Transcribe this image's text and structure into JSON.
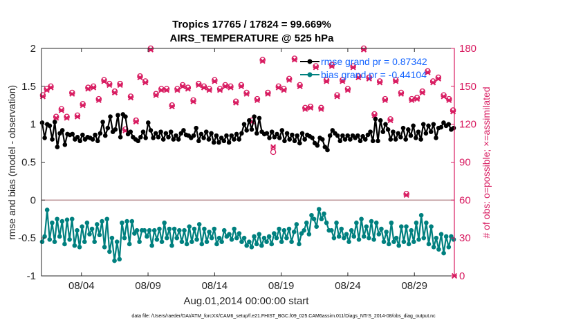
{
  "chart_data": {
    "type": "line",
    "title": "Tropics 17765 / 17824 = 99.669%",
    "subtitle": "AIRS_TEMPERATURE @ 525 hPa",
    "xlabel": "Aug.01,2014 00:00:00 start",
    "ylabel": "rmse and bias (model - observation)",
    "y2label": "# of obs: o=possible; ×=assimilated",
    "footer": "data file: /Users/raeder/DAI/ATM_forcXX/CAM6_setup/f.e21.FHIST_BGC.f09_025.CAM6assim.011/Diags_NTrS_2014-08/obs_diag_output.nc",
    "xlim": [
      0.5,
      31.5
    ],
    "ylim": [
      -1,
      2
    ],
    "y2lim": [
      0,
      180
    ],
    "x_ticks": [
      3.5,
      8.5,
      13.5,
      18.5,
      23.5,
      28.5
    ],
    "x_ticklabels": [
      "08/04",
      "08/09",
      "08/14",
      "08/19",
      "08/24",
      "08/29"
    ],
    "y_ticks": [
      -1,
      -0.5,
      0,
      0.5,
      1,
      1.5,
      2
    ],
    "y_ticklabels": [
      "-1",
      "-0.5",
      "0",
      "0.5",
      "1",
      "1.5",
      "2"
    ],
    "y2_ticks": [
      0,
      30,
      60,
      90,
      120,
      150,
      180
    ],
    "y2_ticklabels": [
      "0",
      "30",
      "60",
      "90",
      "120",
      "150",
      "180"
    ],
    "zero_line": 0,
    "legend": {
      "location": "top-right"
    },
    "series": [
      {
        "name": "rmse grand pr = 0.87342",
        "color": "#000000",
        "values": [
          1.02,
          0.82,
          1.0,
          0.98,
          0.8,
          1.03,
          0.7,
          0.88,
          0.92,
          0.73,
          0.87,
          0.86,
          0.87,
          0.8,
          0.83,
          0.78,
          0.86,
          0.8,
          0.83,
          0.82,
          0.8,
          0.86,
          0.78,
          0.88,
          1.03,
          0.85,
          0.95,
          1.1,
          0.9,
          0.93,
          1.12,
          0.83,
          1.13,
          1.1,
          0.87,
          0.9,
          0.83,
          0.8,
          0.78,
          0.83,
          0.9,
          0.82,
          1.02,
          0.92,
          0.82,
          0.88,
          0.83,
          0.9,
          0.8,
          0.88,
          0.83,
          0.9,
          0.8,
          0.85,
          0.8,
          0.88,
          0.92,
          0.86,
          0.85,
          0.82,
          0.85,
          0.95,
          0.78,
          0.87,
          0.82,
          0.9,
          0.8,
          0.88,
          0.76,
          0.85,
          0.76,
          0.82,
          0.78,
          0.85,
          0.76,
          0.85,
          0.8,
          0.87,
          0.8,
          0.88,
          1.0,
          0.92,
          1.05,
          0.93,
          1.1,
          0.88,
          1.08,
          0.9,
          0.87,
          0.88,
          0.82,
          0.9,
          0.83,
          0.87,
          0.82,
          0.92,
          0.78,
          0.88,
          0.8,
          0.86,
          0.78,
          0.85,
          0.75,
          0.88,
          0.8,
          0.86,
          0.84,
          0.82,
          0.75,
          0.72,
          0.82,
          0.8,
          0.7,
          0.66,
          0.85,
          0.92,
          0.88,
          0.85,
          0.78,
          0.85,
          0.8,
          0.85,
          0.8,
          0.85,
          0.82,
          0.85,
          0.78,
          0.84,
          0.8,
          0.86,
          0.9,
          0.78,
          1.07,
          0.78,
          1.05,
          0.9,
          1.0,
          0.93,
          0.8,
          0.9,
          0.8,
          0.88,
          0.83,
          0.95,
          0.8,
          0.93,
          0.85,
          0.98,
          0.82,
          0.9,
          0.8,
          1.0,
          0.88,
          0.98,
          0.9,
          1.0,
          0.82,
          0.95,
          0.96,
          1.02,
          0.98,
          1.0,
          0.93,
          0.95
        ]
      },
      {
        "name": "bias grand pr = -0.44104",
        "color": "#00807f",
        "values": [
          -0.55,
          -0.48,
          -0.13,
          -0.52,
          -0.3,
          -0.55,
          -0.25,
          -0.48,
          -0.28,
          -0.58,
          -0.26,
          -0.52,
          -0.25,
          -0.6,
          -0.4,
          -0.62,
          -0.35,
          -0.55,
          -0.3,
          -0.45,
          -0.38,
          -0.55,
          -0.32,
          -0.46,
          -0.28,
          -0.62,
          -0.25,
          -0.68,
          -0.5,
          -0.8,
          -0.55,
          -0.78,
          -0.3,
          -0.5,
          -0.28,
          -0.58,
          -0.28,
          -0.44,
          -0.4,
          -0.55,
          -0.4,
          -0.4,
          -0.48,
          -0.4,
          -0.6,
          -0.4,
          -0.52,
          -0.38,
          -0.55,
          -0.3,
          -0.5,
          -0.38,
          -0.6,
          -0.38,
          -0.5,
          -0.4,
          -0.55,
          -0.4,
          -0.58,
          -0.35,
          -0.55,
          -0.38,
          -0.52,
          -0.32,
          -0.58,
          -0.38,
          -0.55,
          -0.42,
          -0.5,
          -0.38,
          -0.58,
          -0.5,
          -0.55,
          -0.4,
          -0.48,
          -0.45,
          -0.52,
          -0.38,
          -0.5,
          -0.44,
          -0.55,
          -0.5,
          -0.6,
          -0.55,
          -0.62,
          -0.48,
          -0.58,
          -0.45,
          -0.6,
          -0.5,
          -0.55,
          -0.48,
          -0.58,
          -0.44,
          -0.5,
          -0.38,
          -0.55,
          -0.4,
          -0.5,
          -0.38,
          -0.55,
          -0.42,
          -0.32,
          -0.58,
          -0.44,
          -0.4,
          -0.3,
          -0.45,
          -0.2,
          -0.25,
          -0.35,
          -0.12,
          -0.25,
          -0.18,
          -0.3,
          -0.4,
          -0.4,
          -0.5,
          -0.3,
          -0.48,
          -0.38,
          -0.5,
          -0.45,
          -0.55,
          -0.4,
          -0.48,
          -0.3,
          -0.52,
          -0.25,
          -0.48,
          -0.35,
          -0.5,
          -0.28,
          -0.52,
          -0.3,
          -0.45,
          -0.38,
          -0.55,
          -0.42,
          -0.58,
          -0.3,
          -0.55,
          -0.5,
          -0.6,
          -0.35,
          -0.55,
          -0.35,
          -0.58,
          -0.4,
          -0.55,
          -0.3,
          -0.52,
          -0.2,
          -0.5,
          -0.3,
          -0.58,
          -0.35,
          -0.62,
          -0.5,
          -0.65,
          -0.45,
          -0.7,
          -0.48,
          -0.62,
          -0.48,
          -0.52
        ]
      }
    ],
    "obs_possible": [
      [
        0.6,
        143
      ],
      [
        0.9,
        148
      ],
      [
        1.2,
        150
      ],
      [
        1.6,
        126
      ],
      [
        2.0,
        132
      ],
      [
        2.4,
        126
      ],
      [
        2.8,
        145
      ],
      [
        3.2,
        127
      ],
      [
        3.6,
        136
      ],
      [
        4.0,
        149
      ],
      [
        4.4,
        150
      ],
      [
        4.8,
        140
      ],
      [
        5.2,
        155
      ],
      [
        5.6,
        152
      ],
      [
        6.0,
        146
      ],
      [
        6.4,
        152
      ],
      [
        6.8,
        116
      ],
      [
        7.2,
        142
      ],
      [
        7.6,
        123
      ],
      [
        7.9,
        158
      ],
      [
        8.3,
        154
      ],
      [
        8.7,
        180
      ],
      [
        9.1,
        144
      ],
      [
        9.5,
        148
      ],
      [
        9.9,
        148
      ],
      [
        10.3,
        135
      ],
      [
        10.7,
        148
      ],
      [
        11.1,
        151
      ],
      [
        11.5,
        149
      ],
      [
        11.9,
        139
      ],
      [
        12.3,
        152
      ],
      [
        12.7,
        150
      ],
      [
        13.1,
        148
      ],
      [
        13.5,
        155
      ],
      [
        13.9,
        148
      ],
      [
        14.3,
        151
      ],
      [
        14.7,
        150
      ],
      [
        15.1,
        138
      ],
      [
        15.5,
        151
      ],
      [
        15.9,
        145
      ],
      [
        16.3,
        123
      ],
      [
        16.7,
        140
      ],
      [
        17.1,
        171
      ],
      [
        17.5,
        145
      ],
      [
        17.9,
        98
      ],
      [
        18.3,
        150
      ],
      [
        18.7,
        148
      ],
      [
        19.1,
        156
      ],
      [
        19.5,
        172
      ],
      [
        19.9,
        151
      ],
      [
        20.3,
        133
      ],
      [
        20.7,
        134
      ],
      [
        21.1,
        166
      ],
      [
        21.5,
        133
      ],
      [
        21.9,
        155
      ],
      [
        22.3,
        167
      ],
      [
        22.7,
        143
      ],
      [
        23.1,
        155
      ],
      [
        23.5,
        148
      ],
      [
        23.9,
        166
      ],
      [
        24.3,
        158
      ],
      [
        24.7,
        180
      ],
      [
        25.1,
        157
      ],
      [
        25.5,
        128
      ],
      [
        25.9,
        154
      ],
      [
        26.3,
        140
      ],
      [
        26.7,
        124
      ],
      [
        27.1,
        155
      ],
      [
        27.5,
        145
      ],
      [
        27.9,
        65
      ],
      [
        28.3,
        140
      ],
      [
        28.7,
        141
      ],
      [
        29.1,
        146
      ],
      [
        29.5,
        162
      ],
      [
        29.9,
        154
      ],
      [
        30.3,
        157
      ],
      [
        30.7,
        143
      ],
      [
        31.1,
        140
      ],
      [
        31.4,
        131
      ]
    ],
    "obs_assimilated": [
      [
        0.6,
        142
      ],
      [
        0.9,
        147
      ],
      [
        1.2,
        149
      ],
      [
        1.6,
        125
      ],
      [
        2.0,
        131
      ],
      [
        2.4,
        125
      ],
      [
        2.8,
        144
      ],
      [
        3.2,
        126
      ],
      [
        3.6,
        135
      ],
      [
        4.0,
        148
      ],
      [
        4.4,
        149
      ],
      [
        4.8,
        139
      ],
      [
        5.2,
        154
      ],
      [
        5.6,
        151
      ],
      [
        6.0,
        145
      ],
      [
        6.4,
        151
      ],
      [
        6.8,
        115
      ],
      [
        7.2,
        141
      ],
      [
        7.6,
        122
      ],
      [
        7.9,
        157
      ],
      [
        8.3,
        153
      ],
      [
        8.7,
        179
      ],
      [
        9.1,
        143
      ],
      [
        9.5,
        147
      ],
      [
        9.9,
        147
      ],
      [
        10.3,
        134
      ],
      [
        10.7,
        147
      ],
      [
        11.1,
        150
      ],
      [
        11.5,
        148
      ],
      [
        11.9,
        138
      ],
      [
        12.3,
        151
      ],
      [
        12.7,
        149
      ],
      [
        13.1,
        147
      ],
      [
        13.5,
        154
      ],
      [
        13.9,
        147
      ],
      [
        14.3,
        150
      ],
      [
        14.7,
        149
      ],
      [
        15.1,
        137
      ],
      [
        15.5,
        150
      ],
      [
        15.9,
        144
      ],
      [
        16.3,
        122
      ],
      [
        16.7,
        139
      ],
      [
        17.1,
        170
      ],
      [
        17.5,
        144
      ],
      [
        17.9,
        102
      ],
      [
        18.3,
        149
      ],
      [
        18.7,
        147
      ],
      [
        19.1,
        155
      ],
      [
        19.5,
        171
      ],
      [
        19.9,
        150
      ],
      [
        20.3,
        132
      ],
      [
        20.7,
        133
      ],
      [
        21.1,
        165
      ],
      [
        21.5,
        132
      ],
      [
        21.9,
        154
      ],
      [
        22.3,
        166
      ],
      [
        22.7,
        142
      ],
      [
        23.1,
        154
      ],
      [
        23.5,
        147
      ],
      [
        23.9,
        165
      ],
      [
        24.3,
        157
      ],
      [
        24.7,
        179
      ],
      [
        25.1,
        156
      ],
      [
        25.5,
        127
      ],
      [
        25.9,
        153
      ],
      [
        26.3,
        139
      ],
      [
        26.7,
        123
      ],
      [
        27.1,
        154
      ],
      [
        27.5,
        144
      ],
      [
        27.9,
        64
      ],
      [
        28.3,
        139
      ],
      [
        28.7,
        140
      ],
      [
        29.1,
        145
      ],
      [
        29.5,
        161
      ],
      [
        29.9,
        153
      ],
      [
        30.3,
        156
      ],
      [
        30.7,
        142
      ],
      [
        31.1,
        139
      ],
      [
        31.4,
        130
      ],
      [
        31.5,
        0
      ]
    ],
    "colors": {
      "obs": "#d81b60",
      "legend_text": "#1565ff",
      "zero_line": "#b4878c"
    }
  }
}
